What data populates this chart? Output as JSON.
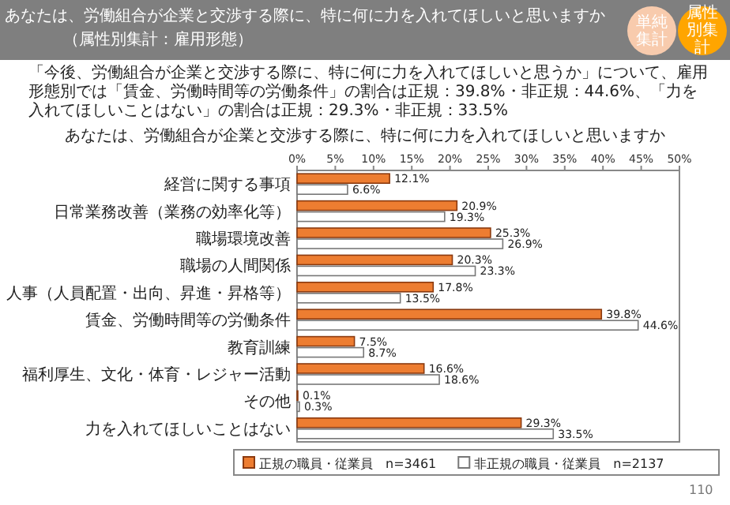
{
  "chart_data": {
    "type": "bar",
    "orientation": "horizontal",
    "title": "あなたは、労働組合が企業と交渉する際に、特に何に力を入れてほしいと思いますか",
    "annotations": [
      "あなたは、労働組合が企業と交渉する際に、特に何に力を入れてほしいと思いますか",
      "（属性別集計：雇用形態）",
      "単純集計",
      "属性別集計",
      "「今後、労働組合が企業と交渉する際に、特に何に力を入れてほしいと思うか」について、雇用形態別では「賃金、労働時間等の労働条件」の割合は正規：39.8%・非正規：44.6%、「力を入れてほしいことはない」の割合は正規：29.3%・非正規：33.5%",
      "110"
    ],
    "categories": [
      "経営に関する事項",
      "日常業務改善（業務の効率化等）",
      "職場環境改善",
      "職場の人間関係",
      "人事（人員配置・出向、昇進・昇格等）",
      "賃金、労働時間等の労働条件",
      "教育訓練",
      "福利厚生、文化・体育・レジャー活動",
      "その他",
      "力を入れてほしいことはない"
    ],
    "series": [
      {
        "name": "正規の職員・従業員　n=3461",
        "color": "#ed7d31",
        "values": [
          12.1,
          20.9,
          25.3,
          20.3,
          17.8,
          39.8,
          7.5,
          16.6,
          0.1,
          29.3
        ],
        "value_labels": [
          "12.1%",
          "20.9%",
          "25.3%",
          "20.3%",
          "17.8%",
          "39.8%",
          "7.5%",
          "16.6%",
          "0.1%",
          "29.3%"
        ]
      },
      {
        "name": "非正規の職員・従業員　n=2137",
        "color": "#ffffff",
        "values": [
          6.6,
          19.3,
          26.9,
          23.3,
          13.5,
          44.6,
          8.7,
          18.6,
          0.3,
          33.5
        ],
        "value_labels": [
          "6.6%",
          "19.3%",
          "26.9%",
          "23.3%",
          "13.5%",
          "44.6%",
          "8.7%",
          "18.6%",
          "0.3%",
          "33.5%"
        ]
      }
    ],
    "xlim": [
      0,
      50
    ],
    "xticks": [
      {
        "value": 0,
        "label": "0%"
      },
      {
        "value": 5,
        "label": "5%"
      },
      {
        "value": 10,
        "label": "10%"
      },
      {
        "value": 15,
        "label": "15%"
      },
      {
        "value": 20,
        "label": "20%"
      },
      {
        "value": 25,
        "label": "25%"
      },
      {
        "value": 30,
        "label": "30%"
      },
      {
        "value": 35,
        "label": "35%"
      },
      {
        "value": 40,
        "label": "40%"
      },
      {
        "value": 45,
        "label": "45%"
      },
      {
        "value": 50,
        "label": "50%"
      }
    ],
    "grid": false,
    "legend": "bottom"
  }
}
